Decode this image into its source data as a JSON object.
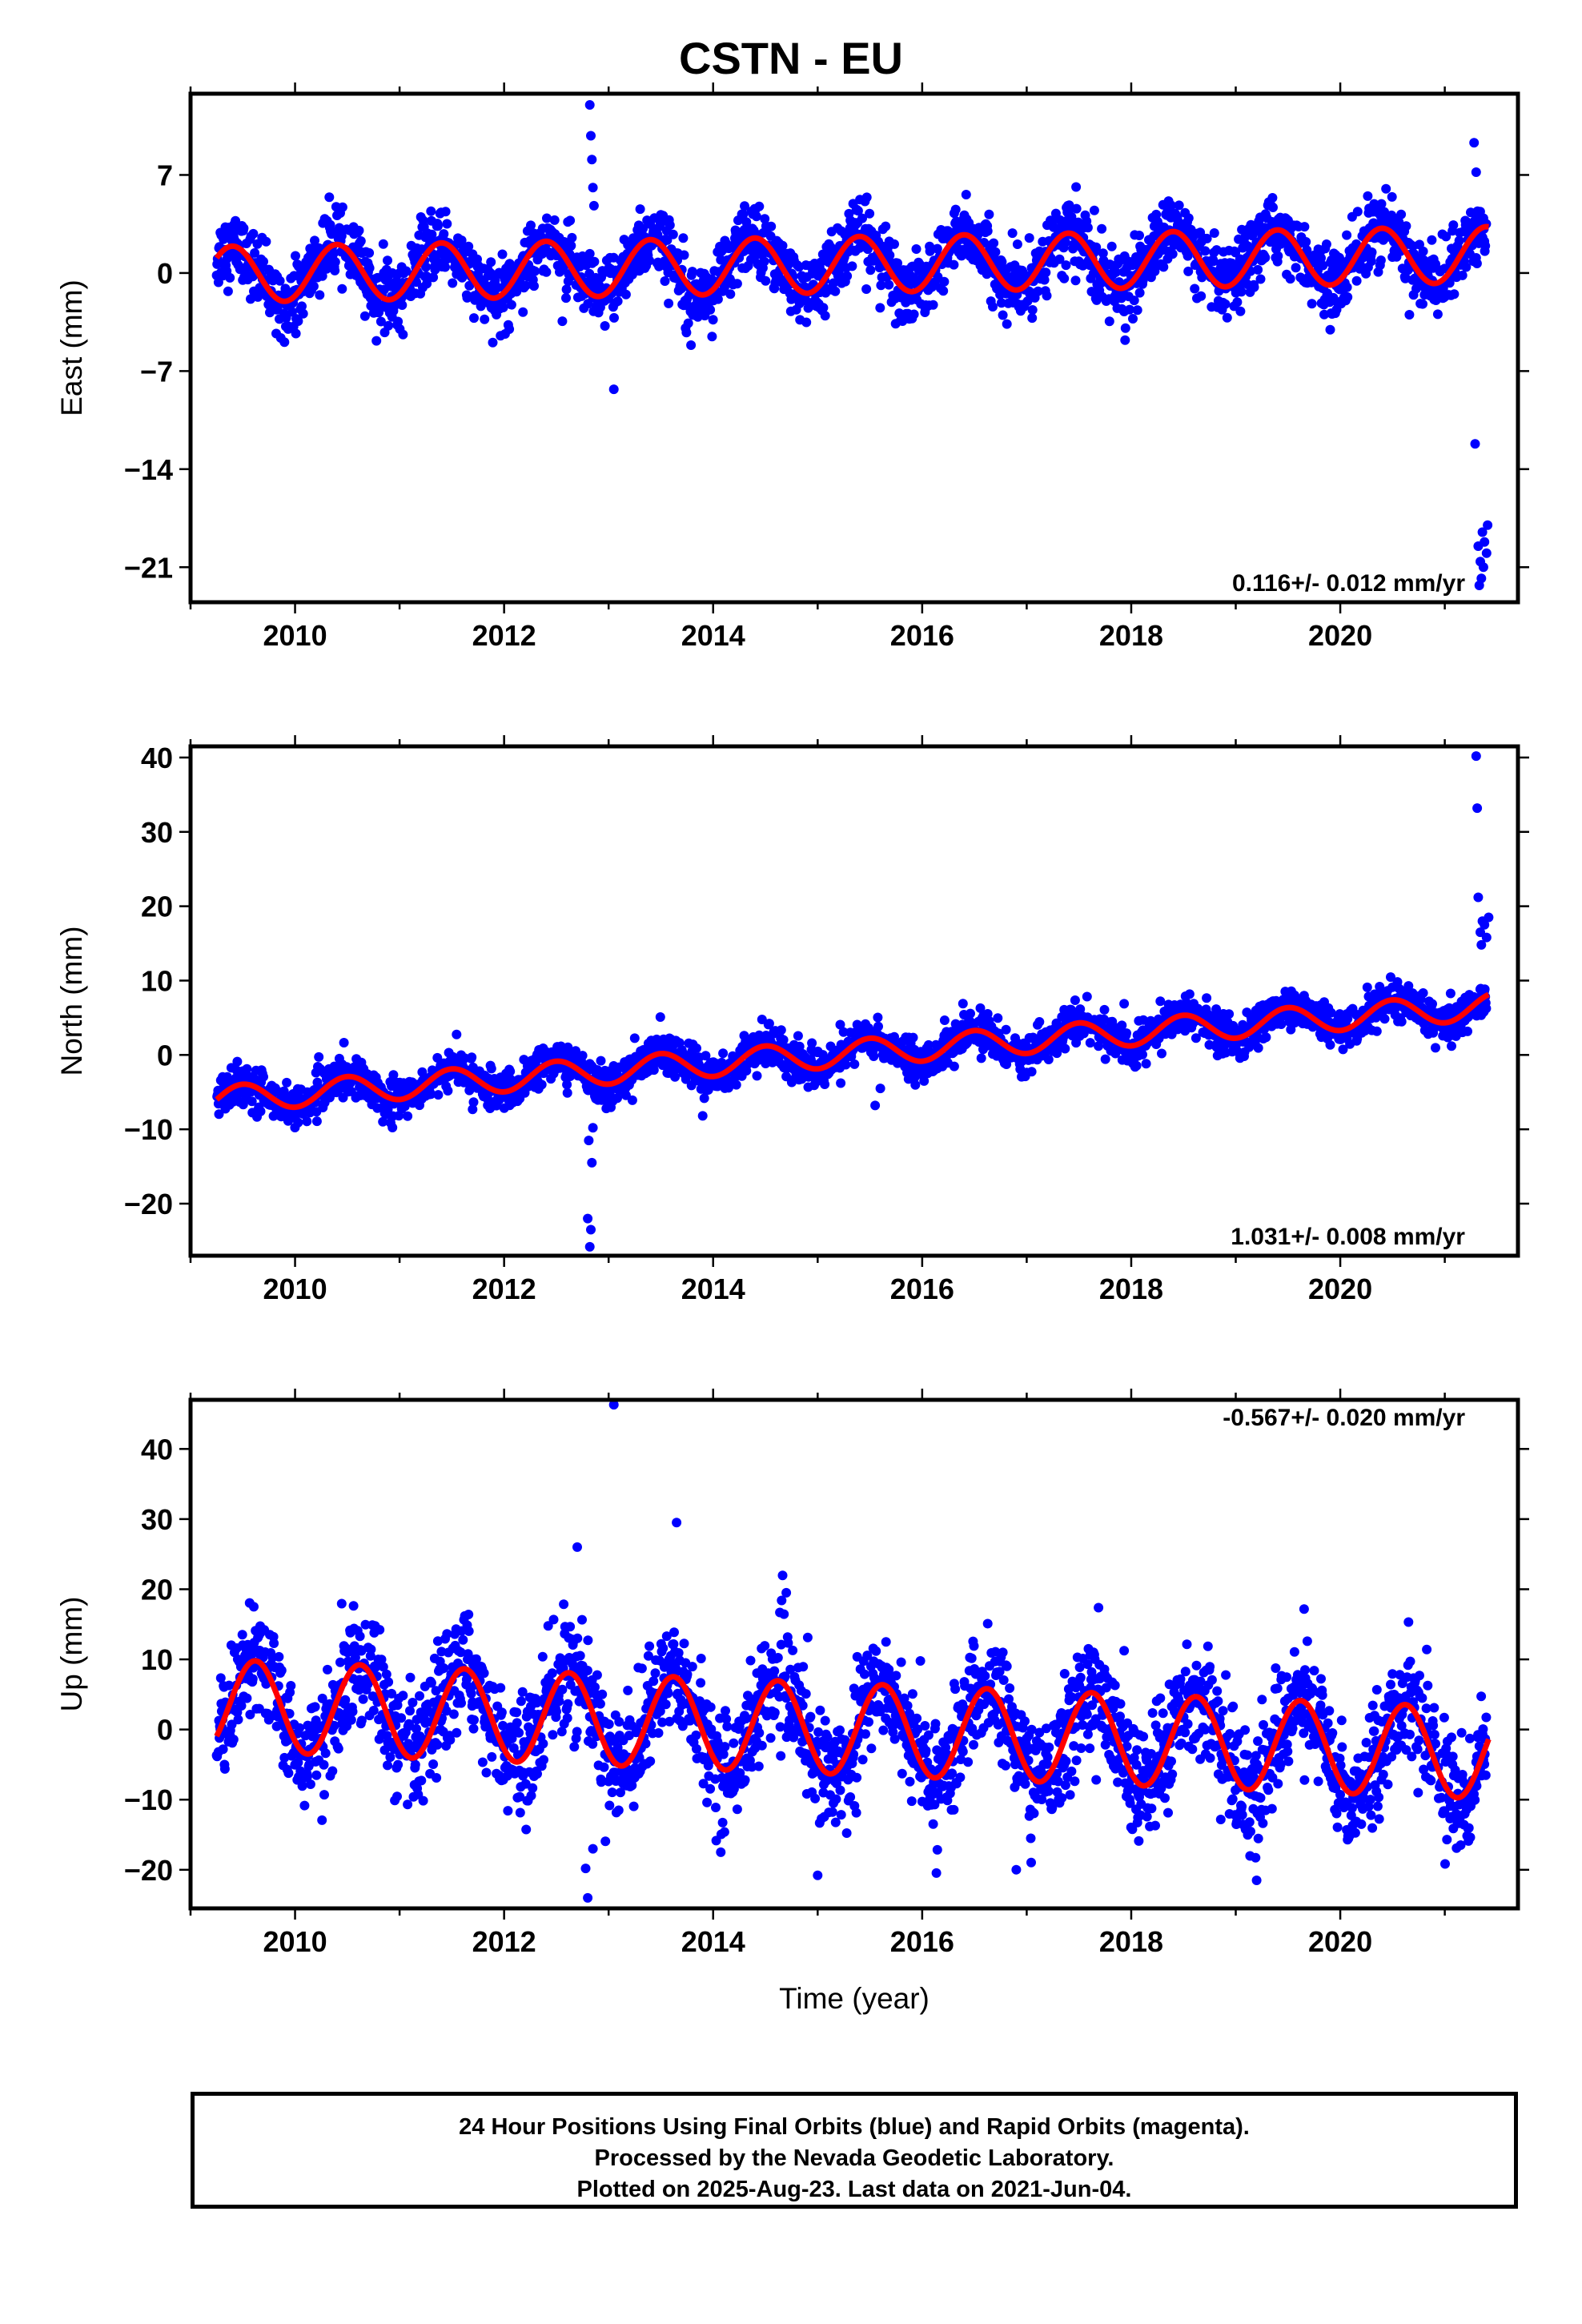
{
  "title": "CSTN - EU",
  "footer": {
    "lines": [
      "24 Hour Positions Using Final Orbits (blue) and Rapid Orbits (magenta).",
      "Processed by the Nevada Geodetic Laboratory.",
      "Plotted on 2025-Aug-23. Last data on 2021-Jun-04."
    ]
  },
  "colors": {
    "points": "#0000ff",
    "fit": "#ff0000",
    "axes": "#000000"
  },
  "chart_data": [
    {
      "type": "scatter",
      "ylabel": "East (mm)",
      "xlabel": "",
      "xlim": [
        2009.0,
        2021.7
      ],
      "ylim": [
        -23.5,
        12.8
      ],
      "xticks": [
        2010,
        2012,
        2014,
        2016,
        2018,
        2020
      ],
      "yticks": [
        -21,
        -14,
        -7,
        0,
        7
      ],
      "yticklabels": [
        "−21",
        "−14",
        "−7",
        "0",
        "7"
      ],
      "rate_label": "0.116+/- 0.012 mm/yr",
      "rate_position": "bottom-right",
      "x_range": [
        2009.25,
        2021.42
      ],
      "model": {
        "offset": -0.1,
        "slope": 0.116,
        "annual_amp": 2.0,
        "peak_phase": 0.4,
        "noise": 1.2
      },
      "outliers": [
        {
          "x": 2012.82,
          "y": 12.0
        },
        {
          "x": 2012.83,
          "y": 9.8
        },
        {
          "x": 2012.84,
          "y": 8.1
        },
        {
          "x": 2012.85,
          "y": 6.1
        },
        {
          "x": 2012.86,
          "y": 4.8
        },
        {
          "x": 2013.05,
          "y": -8.3
        },
        {
          "x": 2021.29,
          "y": -12.2
        },
        {
          "x": 2021.28,
          "y": 9.3
        },
        {
          "x": 2021.3,
          "y": 7.2
        },
        {
          "x": 2021.32,
          "y": -19.5
        },
        {
          "x": 2021.34,
          "y": -20.6
        },
        {
          "x": 2021.35,
          "y": -21.8
        },
        {
          "x": 2021.36,
          "y": -18.5
        },
        {
          "x": 2021.38,
          "y": -19.2
        },
        {
          "x": 2021.4,
          "y": -20.0
        },
        {
          "x": 2021.33,
          "y": -22.3
        },
        {
          "x": 2021.37,
          "y": -21.0
        },
        {
          "x": 2021.41,
          "y": -18.0
        }
      ]
    },
    {
      "type": "scatter",
      "ylabel": "North (mm)",
      "xlabel": "",
      "xlim": [
        2009.0,
        2021.7
      ],
      "ylim": [
        -27,
        41.5
      ],
      "xticks": [
        2010,
        2012,
        2014,
        2016,
        2018,
        2020
      ],
      "yticks": [
        -20,
        -10,
        0,
        10,
        20,
        30,
        40
      ],
      "yticklabels": [
        "−20",
        "−10",
        "0",
        "10",
        "20",
        "30",
        "40"
      ],
      "rate_label": "1.031+/- 0.008 mm/yr",
      "rate_position": "bottom-right",
      "x_range": [
        2009.25,
        2021.42
      ],
      "model": {
        "offset": -6.0,
        "slope": 1.031,
        "annual_amp": 1.8,
        "peak_phase": 0.5,
        "noise": 1.3
      },
      "outliers": [
        {
          "x": 2012.8,
          "y": -22.0
        },
        {
          "x": 2012.82,
          "y": -25.8
        },
        {
          "x": 2012.83,
          "y": -23.5
        },
        {
          "x": 2012.84,
          "y": -14.5
        },
        {
          "x": 2012.81,
          "y": -11.5
        },
        {
          "x": 2012.85,
          "y": -9.8
        },
        {
          "x": 2013.9,
          "y": -8.2
        },
        {
          "x": 2015.55,
          "y": -6.8
        },
        {
          "x": 2015.6,
          "y": -4.5
        },
        {
          "x": 2021.3,
          "y": 40.2
        },
        {
          "x": 2021.31,
          "y": 33.2
        },
        {
          "x": 2021.32,
          "y": 21.2
        },
        {
          "x": 2021.34,
          "y": 16.5
        },
        {
          "x": 2021.36,
          "y": 18.0
        },
        {
          "x": 2021.38,
          "y": 17.5
        },
        {
          "x": 2021.4,
          "y": 15.8
        },
        {
          "x": 2021.35,
          "y": 14.8
        },
        {
          "x": 2021.42,
          "y": 18.5
        }
      ]
    },
    {
      "type": "scatter",
      "ylabel": "Up (mm)",
      "xlabel": "Time (year)",
      "xlim": [
        2009.0,
        2021.7
      ],
      "ylim": [
        -25.5,
        47
      ],
      "xticks": [
        2010,
        2012,
        2014,
        2016,
        2018,
        2020
      ],
      "yticks": [
        -20,
        -10,
        0,
        10,
        20,
        30,
        40
      ],
      "yticklabels": [
        "−20",
        "−10",
        "0",
        "10",
        "20",
        "30",
        "40"
      ],
      "rate_label": "-0.567+/- 0.020 mm/yr",
      "rate_position": "top-right",
      "x_range": [
        2009.25,
        2021.42
      ],
      "model": {
        "offset": 3.5,
        "slope": -0.567,
        "annual_amp": 6.5,
        "peak_phase": 0.62,
        "noise": 4.0
      },
      "outliers": [
        {
          "x": 2013.05,
          "y": 46.3
        },
        {
          "x": 2013.65,
          "y": 29.5
        },
        {
          "x": 2012.7,
          "y": 26.0
        },
        {
          "x": 2012.8,
          "y": -24.0
        },
        {
          "x": 2012.78,
          "y": -19.8
        },
        {
          "x": 2012.85,
          "y": -17.0
        },
        {
          "x": 2015.0,
          "y": -20.8
        },
        {
          "x": 2019.2,
          "y": -21.5
        },
        {
          "x": 2016.9,
          "y": -20.0
        },
        {
          "x": 2014.7,
          "y": 19.5
        }
      ]
    }
  ]
}
